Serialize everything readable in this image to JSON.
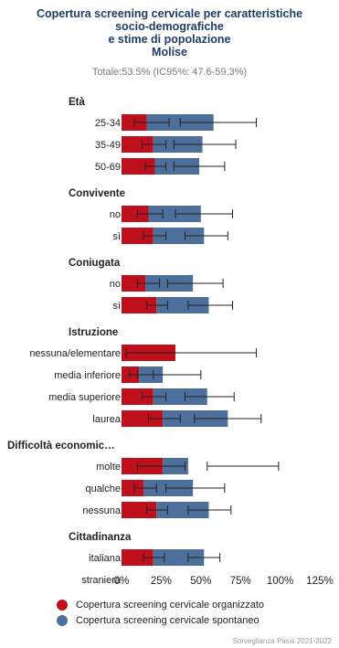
{
  "chart_data": {
    "type": "bar",
    "stacked": true,
    "orientation": "horizontal",
    "title_lines": [
      "Copertura screening cervicale per caratteristiche",
      "socio-demografiche",
      "e stime di popolazione",
      "Molise"
    ],
    "subtitle": "Totale:53.5% (IC95%: 47.6-59.3%)",
    "xlim": [
      0,
      125
    ],
    "xticks": [
      "0%",
      "25%",
      "50%",
      "75%",
      "100%",
      "125%"
    ],
    "xtick_values": [
      0,
      25,
      50,
      75,
      100,
      125
    ],
    "colors": {
      "organized": "#bf0f1c",
      "spontaneous": "#4d6f9b"
    },
    "series": [
      {
        "name": "Copertura screening cervicale organizzato"
      },
      {
        "name": "Copertura screening cervicale spontaneo"
      }
    ],
    "groups": [
      {
        "label": "Età",
        "rows": [
          {
            "label": "25-34",
            "organized": 16,
            "spontaneous": 42,
            "org_ci": [
              8,
              30
            ],
            "spo_ci": [
              37,
              85
            ]
          },
          {
            "label": "35-49",
            "organized": 20,
            "spontaneous": 31,
            "org_ci": [
              13,
              28
            ],
            "spo_ci": [
              33,
              72
            ]
          },
          {
            "label": "50-69",
            "organized": 21,
            "spontaneous": 28,
            "org_ci": [
              15,
              28
            ],
            "spo_ci": [
              33,
              65
            ]
          }
        ]
      },
      {
        "label": "Convivente",
        "rows": [
          {
            "label": "no",
            "organized": 17,
            "spontaneous": 33,
            "org_ci": [
              10,
              26
            ],
            "spo_ci": [
              34,
              70
            ]
          },
          {
            "label": "sì",
            "organized": 20,
            "spontaneous": 32,
            "org_ci": [
              14,
              28
            ],
            "spo_ci": [
              40,
              67
            ]
          }
        ]
      },
      {
        "label": "Coniugata",
        "rows": [
          {
            "label": "no",
            "organized": 15,
            "spontaneous": 30,
            "org_ci": [
              10,
              24
            ],
            "spo_ci": [
              29,
              64
            ]
          },
          {
            "label": "sì",
            "organized": 22,
            "spontaneous": 33,
            "org_ci": [
              16,
              29
            ],
            "spo_ci": [
              42,
              70
            ]
          }
        ]
      },
      {
        "label": "Istruzione",
        "rows": [
          {
            "label": "nessuna/elementare",
            "organized": 34,
            "spontaneous": 0,
            "org_ci": [
              3,
              85
            ],
            "spo_ci": null
          },
          {
            "label": "media inferiore",
            "organized": 11,
            "spontaneous": 15,
            "org_ci": [
              5,
              20
            ],
            "spo_ci": [
              10,
              50
            ]
          },
          {
            "label": "media superiore",
            "organized": 20,
            "spontaneous": 34,
            "org_ci": [
              13,
              28
            ],
            "spo_ci": [
              40,
              71
            ]
          },
          {
            "label": "laurea",
            "organized": 26,
            "spontaneous": 41,
            "org_ci": [
              17,
              37
            ],
            "spo_ci": [
              46,
              88
            ]
          }
        ]
      },
      {
        "label": "Difficoltà economic…",
        "rows": [
          {
            "label": "molte",
            "organized": 26,
            "spontaneous": 16,
            "org_ci": [
              10,
              40
            ],
            "spo_ci": [
              54,
              99
            ]
          },
          {
            "label": "qualche",
            "organized": 14,
            "spontaneous": 31,
            "org_ci": [
              8,
              22
            ],
            "spo_ci": [
              28,
              65
            ]
          },
          {
            "label": "nessuna",
            "organized": 22,
            "spontaneous": 33,
            "org_ci": [
              16,
              29
            ],
            "spo_ci": [
              42,
              69
            ]
          }
        ]
      },
      {
        "label": "Cittadinanza",
        "rows": [
          {
            "label": "italiana",
            "organized": 20,
            "spontaneous": 32,
            "org_ci": [
              14,
              27
            ],
            "spo_ci": [
              42,
              62
            ]
          },
          {
            "label": "straniera",
            "organized": 0,
            "spontaneous": 0,
            "org_ci": null,
            "spo_ci": null
          }
        ]
      }
    ]
  },
  "credits": "Sorveglianza Passi 2021-2022"
}
